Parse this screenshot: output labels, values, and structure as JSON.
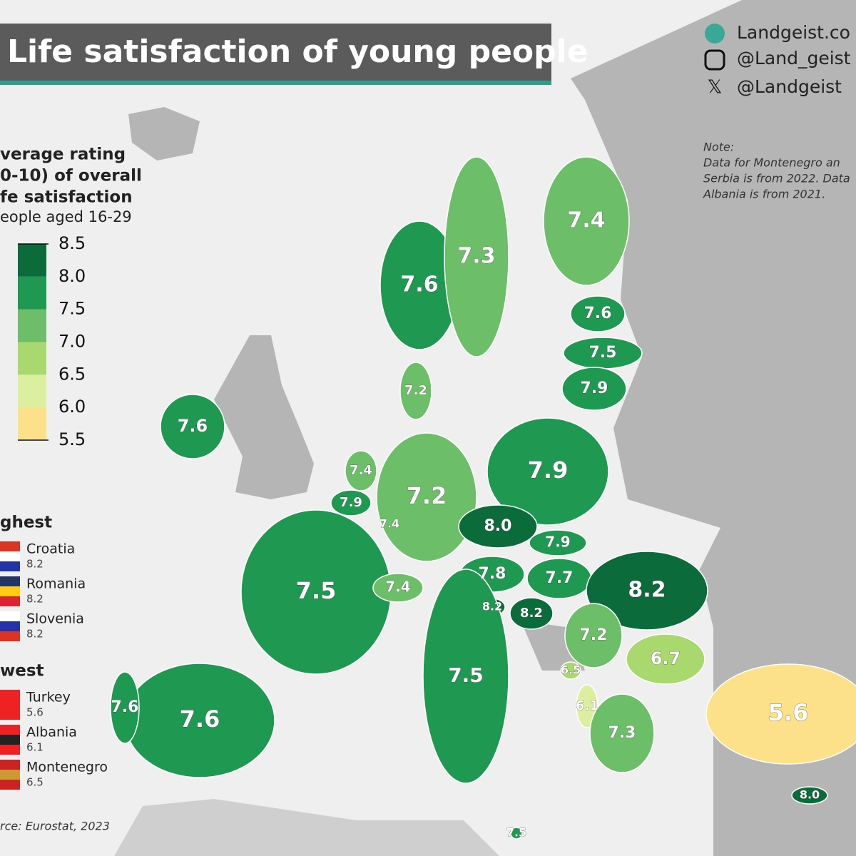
{
  "header": {
    "title": "Life satisfaction of young people"
  },
  "social": [
    "Landgeist.co",
    "@Land_geist",
    "@Landgeist"
  ],
  "note": {
    "title": "Note:",
    "lines": [
      "Data for Montenegro an",
      "Serbia is from 2022. Data",
      "Albania is from 2021."
    ]
  },
  "legend": {
    "title": [
      "verage rating",
      "0-10) of overall",
      "fe satisfaction"
    ],
    "subtitle": "eople aged 16-29",
    "ticks": [
      {
        "value": 8.5,
        "label": "8.5"
      },
      {
        "value": 8.0,
        "label": "8.0"
      },
      {
        "value": 7.5,
        "label": "7.5"
      },
      {
        "value": 7.0,
        "label": "7.0"
      },
      {
        "value": 6.5,
        "label": "6.5"
      },
      {
        "value": 6.0,
        "label": "6.0"
      },
      {
        "value": 5.5,
        "label": "5.5"
      }
    ],
    "colors": [
      "#fde08a",
      "#dcef9e",
      "#a9d86e",
      "#6cbf68",
      "#1f9851",
      "#0b6b3a"
    ]
  },
  "highest": {
    "title": "ghest",
    "items": [
      {
        "name": "Croatia",
        "label": "8.2"
      },
      {
        "name": "Romania",
        "label": "8.2"
      },
      {
        "name": "Slovenia",
        "label": "8.2"
      }
    ]
  },
  "lowest": {
    "title": "west",
    "items": [
      {
        "name": "Turkey",
        "label": "5.6"
      },
      {
        "name": "Albania",
        "label": "6.1"
      },
      {
        "name": "Montenegro",
        "label": "6.5"
      }
    ]
  },
  "source": "rce: Eurostat, 2023",
  "regions": [
    {
      "value": 7.6,
      "label": "7.6"
    },
    {
      "value": 7.3,
      "label": "7.3"
    },
    {
      "value": 7.4,
      "label": "7.4"
    },
    {
      "value": 7.6,
      "label": "7.6"
    },
    {
      "value": 7.5,
      "label": "7.5"
    },
    {
      "value": 7.9,
      "label": "7.9"
    },
    {
      "value": 7.2,
      "label": "7.2"
    },
    {
      "value": 7.6,
      "label": "7.6"
    },
    {
      "value": 7.4,
      "label": "7.4"
    },
    {
      "value": 7.9,
      "label": "7.9"
    },
    {
      "value": 7.4,
      "label": "7.4"
    },
    {
      "value": 7.2,
      "label": "7.2"
    },
    {
      "value": 7.9,
      "label": "7.9"
    },
    {
      "value": 8.0,
      "label": "8.0"
    },
    {
      "value": 7.9,
      "label": "7.9"
    },
    {
      "value": 7.8,
      "label": "7.8"
    },
    {
      "value": 7.7,
      "label": "7.7"
    },
    {
      "value": 8.2,
      "label": "8.2"
    },
    {
      "value": 8.2,
      "label": "8.2"
    },
    {
      "value": 8.2,
      "label": "8.2"
    },
    {
      "value": 7.5,
      "label": "7.5"
    },
    {
      "value": 7.4,
      "label": "7.4"
    },
    {
      "value": 7.2,
      "label": "7.2"
    },
    {
      "value": 6.7,
      "label": "6.7"
    },
    {
      "value": 6.5,
      "label": "6.5"
    },
    {
      "value": 6.1,
      "label": "6.1"
    },
    {
      "value": 7.3,
      "label": "7.3"
    },
    {
      "value": 5.6,
      "label": "5.6"
    },
    {
      "value": 7.5,
      "label": "7.5"
    },
    {
      "value": 7.6,
      "label": "7.6"
    },
    {
      "value": 7.6,
      "label": "7.6"
    },
    {
      "value": 7.5,
      "label": "7.5"
    },
    {
      "value": 8.0,
      "label": "8.0"
    }
  ]
}
